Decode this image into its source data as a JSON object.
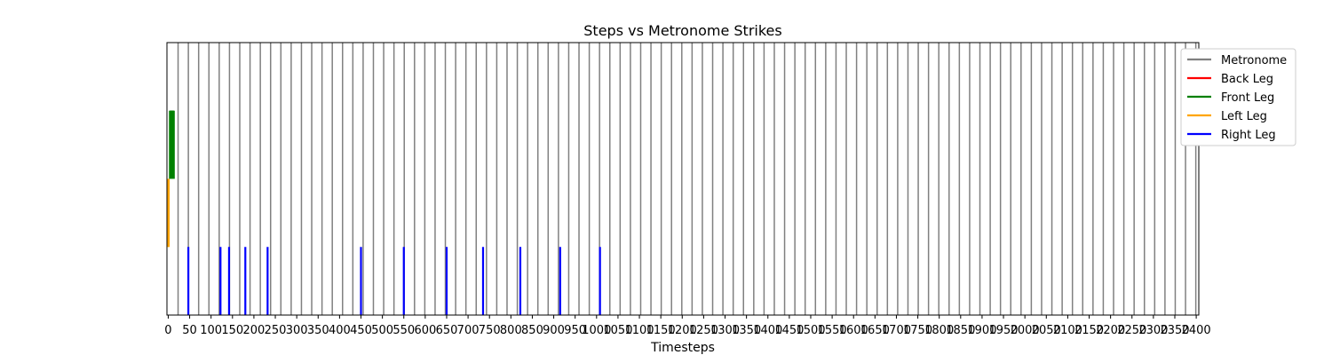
{
  "chart_data": {
    "type": "event-strip",
    "title": "Steps vs Metronome Strikes",
    "xlabel": "Timesteps",
    "ylabel": "",
    "xlim": [
      -3,
      2406
    ],
    "x_ticks": [
      0,
      50,
      100,
      150,
      200,
      250,
      300,
      350,
      400,
      450,
      500,
      550,
      600,
      650,
      700,
      750,
      800,
      850,
      900,
      950,
      1000,
      1050,
      1100,
      1150,
      1200,
      1250,
      1300,
      1350,
      1400,
      1450,
      1500,
      1550,
      1600,
      1650,
      1700,
      1750,
      1800,
      1850,
      1900,
      1950,
      2000,
      2050,
      2100,
      2150,
      2200,
      2250,
      2300,
      2350,
      2400
    ],
    "y_ticks_shown": false,
    "legend_position": "upper right, partly outside axes",
    "series": [
      {
        "name": "Metronome",
        "color": "#808080",
        "row": "full",
        "x": [
          23,
          47,
          71,
          95,
          119,
          143,
          167,
          191,
          215,
          239,
          263,
          287,
          311,
          335,
          359,
          383,
          407,
          431,
          455,
          479,
          503,
          527,
          551,
          575,
          599,
          623,
          647,
          671,
          695,
          719,
          743,
          767,
          791,
          815,
          839,
          863,
          887,
          911,
          935,
          959,
          983,
          1007,
          1031,
          1055,
          1079,
          1103,
          1127,
          1151,
          1175,
          1199,
          1223,
          1247,
          1271,
          1295,
          1319,
          1343,
          1367,
          1391,
          1415,
          1439,
          1463,
          1487,
          1511,
          1535,
          1559,
          1583,
          1607,
          1631,
          1655,
          1679,
          1703,
          1727,
          1751,
          1775,
          1799,
          1823,
          1847,
          1871,
          1895,
          1919,
          1943,
          1967,
          1991,
          2015,
          2039,
          2063,
          2087,
          2111,
          2135,
          2159,
          2183,
          2207,
          2231,
          2255,
          2279,
          2303,
          2327,
          2351,
          2375,
          2399
        ]
      },
      {
        "name": "Back Leg",
        "color": "#ff0000",
        "row": 4,
        "x": []
      },
      {
        "name": "Front Leg",
        "color": "#008000",
        "row": 3,
        "x": [
          4,
          5,
          6,
          7,
          8,
          9,
          10,
          11,
          12,
          13
        ]
      },
      {
        "name": "Left Leg",
        "color": "#ffa500",
        "row": 2,
        "x": [
          0,
          1
        ]
      },
      {
        "name": "Right Leg",
        "color": "#0000ff",
        "row": 1,
        "x": [
          47,
          122,
          142,
          180,
          232,
          450,
          550,
          650,
          735,
          822,
          915,
          1008
        ]
      }
    ]
  }
}
